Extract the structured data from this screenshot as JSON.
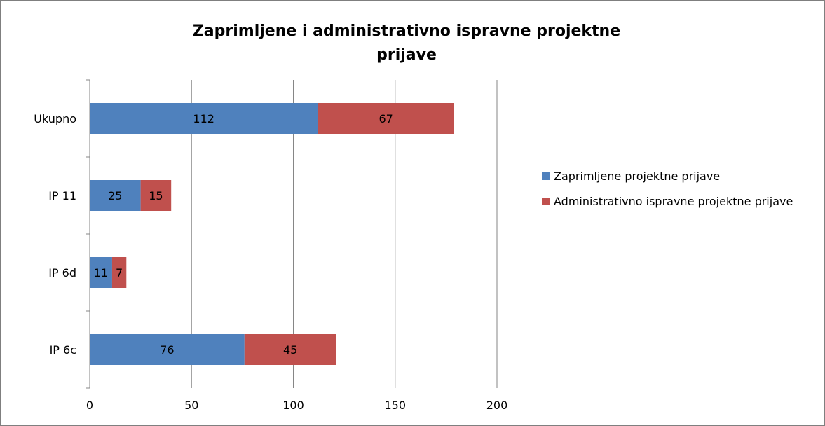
{
  "chart_data": {
    "type": "bar",
    "orientation": "horizontal",
    "stacked": true,
    "title_line1": "Zaprimljene i administrativno ispravne projektne",
    "title_line2": "prijave",
    "categories": [
      "Ukupno",
      "IP 11",
      "IP 6d",
      "IP 6c"
    ],
    "series": [
      {
        "name": "Zaprimljene projektne prijave",
        "values": [
          112,
          25,
          11,
          76
        ],
        "color": "#4f81bd"
      },
      {
        "name": "Administrativno ispravne projektne prijave",
        "values": [
          67,
          15,
          7,
          45
        ],
        "color": "#c0504d"
      }
    ],
    "xlim": [
      0,
      200
    ],
    "xticks": [
      0,
      50,
      100,
      150,
      200
    ],
    "grid": true,
    "legend_position": "right"
  }
}
